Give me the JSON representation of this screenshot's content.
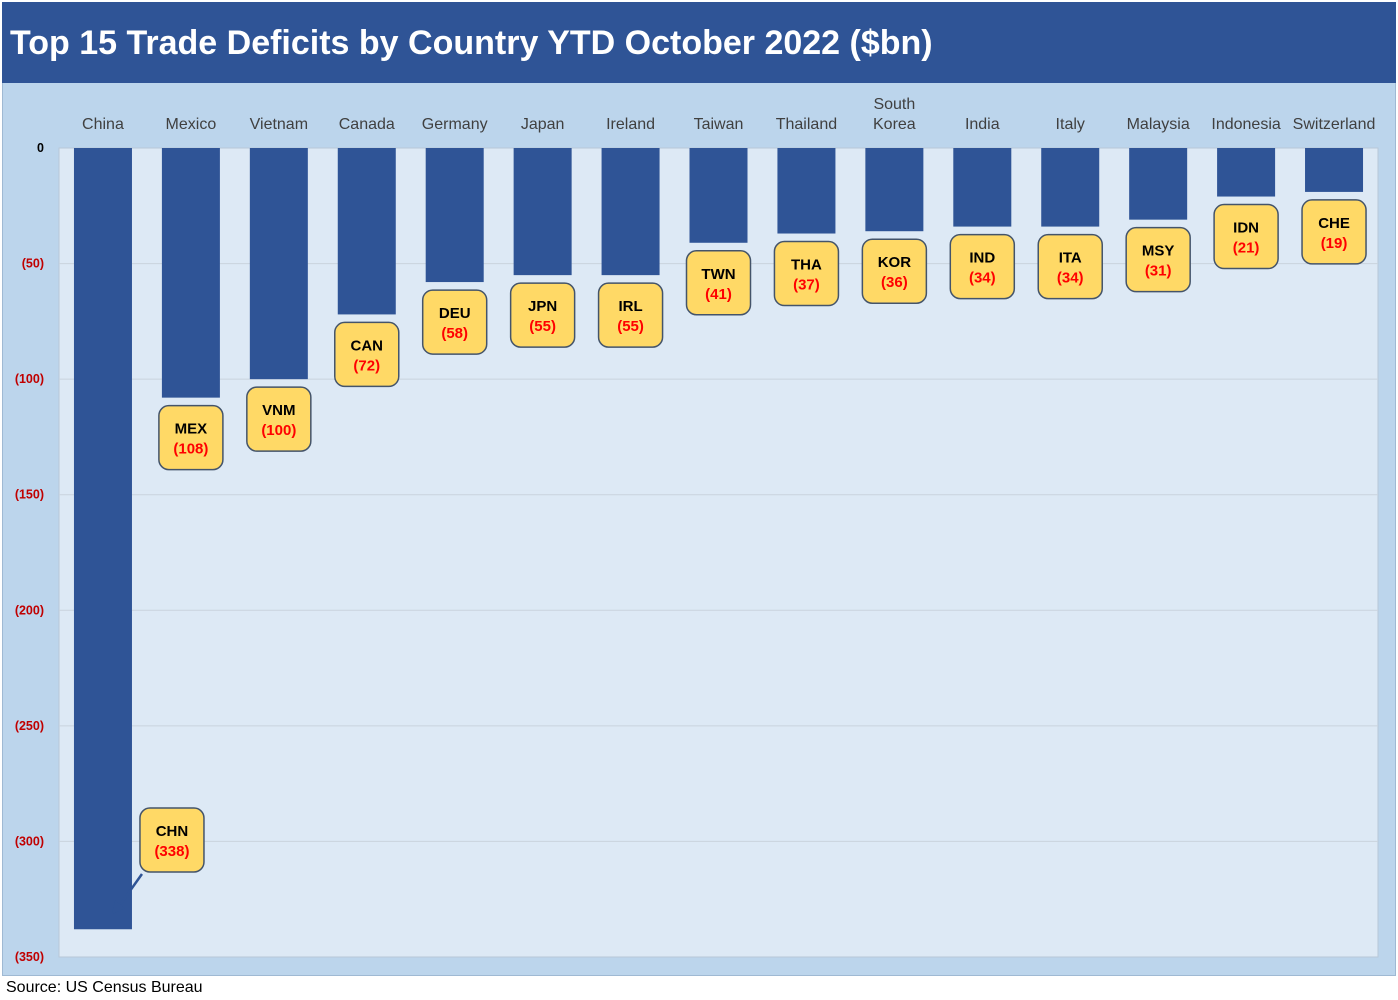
{
  "title": "Top 15 Trade Deficits by Country YTD October 2022 ($bn)",
  "source": "Source: US Census Bureau",
  "colors": {
    "header": "#2f5496",
    "bar": "#2f5496",
    "plot_bg": "#dde9f5",
    "frame_bg": "#bcd5ec",
    "callout_fill": "#ffd966",
    "callout_value": "#ff0000",
    "axis_label": "#c00000"
  },
  "chart_data": {
    "type": "bar",
    "title": "Top 15 Trade Deficits by Country YTD October 2022 ($bn)",
    "xlabel": "",
    "ylabel": "",
    "ylim": [
      -350,
      0
    ],
    "yticks": [
      0,
      -50,
      -100,
      -150,
      -200,
      -250,
      -300,
      -350
    ],
    "ytick_labels": [
      "0",
      "(50)",
      "(100)",
      "(150)",
      "(200)",
      "(250)",
      "(300)",
      "(350)"
    ],
    "grid": true,
    "category_axis_position": "top",
    "categories": [
      "China",
      "Mexico",
      "Vietnam",
      "Canada",
      "Germany",
      "Japan",
      "Ireland",
      "Taiwan",
      "Thailand",
      "South Korea",
      "India",
      "Italy",
      "Malaysia",
      "Indonesia",
      "Switzerland"
    ],
    "codes": [
      "CHN",
      "MEX",
      "VNM",
      "CAN",
      "DEU",
      "JPN",
      "IRL",
      "TWN",
      "THA",
      "KOR",
      "IND",
      "ITA",
      "MSY",
      "IDN",
      "CHE"
    ],
    "values": [
      -338,
      -108,
      -100,
      -72,
      -58,
      -55,
      -55,
      -41,
      -37,
      -36,
      -34,
      -34,
      -31,
      -21,
      -19
    ],
    "value_labels": [
      "(338)",
      "(108)",
      "(100)",
      "(72)",
      "(58)",
      "(55)",
      "(55)",
      "(41)",
      "(37)",
      "(36)",
      "(34)",
      "(34)",
      "(31)",
      "(21)",
      "(19)"
    ]
  }
}
